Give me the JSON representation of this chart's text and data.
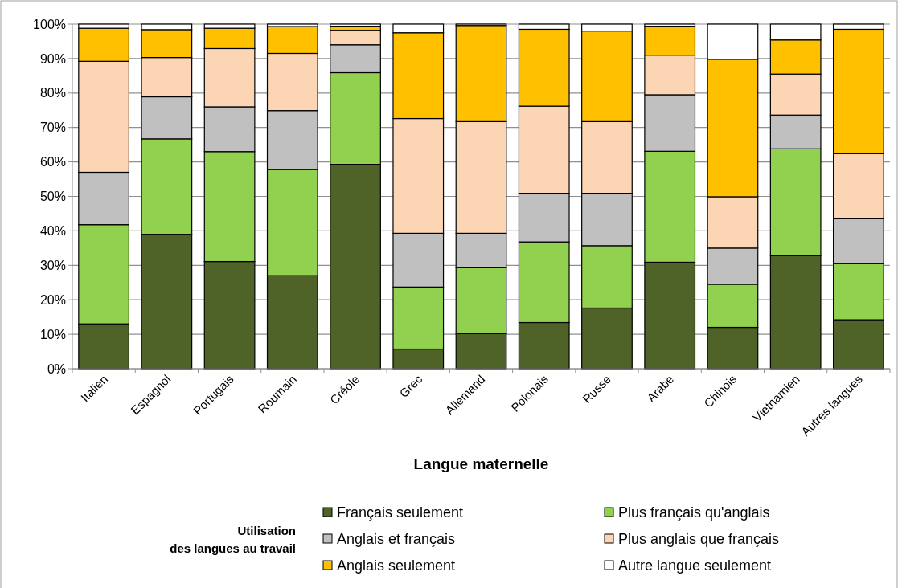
{
  "chart_data": {
    "type": "bar",
    "stacked": true,
    "xlabel": "Langue maternelle",
    "legend_title": "Utilisation\ndes langues au travail",
    "legend": "bottom",
    "grid": "y",
    "categories": [
      "Italien",
      "Espagnol",
      "Portugais",
      "Roumain",
      "Créole",
      "Grec",
      "Allemand",
      "Polonais",
      "Russe",
      "Arabe",
      "Chinois",
      "Vietnamien",
      "Autres langues"
    ],
    "ylim": [
      0,
      100
    ],
    "yticks": [
      {
        "value": 0,
        "label": "0%"
      },
      {
        "value": 10,
        "label": "10%"
      },
      {
        "value": 20,
        "label": "20%"
      },
      {
        "value": 30,
        "label": "30%"
      },
      {
        "value": 40,
        "label": "40%"
      },
      {
        "value": 50,
        "label": "50%"
      },
      {
        "value": 60,
        "label": "60%"
      },
      {
        "value": 70,
        "label": "70%"
      },
      {
        "value": 80,
        "label": "80%"
      },
      {
        "value": 90,
        "label": "90%"
      },
      {
        "value": 100,
        "label": "100%"
      }
    ],
    "series": [
      {
        "name": "Français seulement",
        "color": "#4f6228",
        "values": [
          13,
          39,
          31.1,
          27,
          59.3,
          5.7,
          10.2,
          13.4,
          17.6,
          30.9,
          12,
          32.8,
          14.2
        ]
      },
      {
        "name": "Plus français qu'anglais",
        "color": "#92d050",
        "values": [
          28.8,
          27.7,
          31.9,
          30.8,
          26.6,
          18,
          19.1,
          23.4,
          18.1,
          32.2,
          12.5,
          31,
          16.3
        ]
      },
      {
        "name": "Anglais et français",
        "color": "#c0c0c0",
        "values": [
          15.2,
          12.2,
          13,
          17.1,
          8.1,
          15.6,
          10,
          14.1,
          15.2,
          16.4,
          10.5,
          9.8,
          13
        ]
      },
      {
        "name": "Plus anglais que français",
        "color": "#fcd5b5",
        "values": [
          32.2,
          11.4,
          16.9,
          16.6,
          4.2,
          33.3,
          32.4,
          25.3,
          20.8,
          11.5,
          14.9,
          11.9,
          18.9
        ]
      },
      {
        "name": "Anglais seulement",
        "color": "#ffc000",
        "values": [
          9.6,
          8.1,
          5.9,
          7.8,
          1.2,
          24.9,
          27.9,
          22.3,
          26.3,
          8.4,
          39.9,
          9.9,
          36.1
        ]
      },
      {
        "name": "Autre langue seulement",
        "color": "#ffffff",
        "values": [
          1.2,
          1.6,
          1.2,
          0.7,
          0.6,
          2.5,
          0.4,
          1.5,
          2,
          0.6,
          10.2,
          4.6,
          1.5
        ]
      }
    ]
  }
}
